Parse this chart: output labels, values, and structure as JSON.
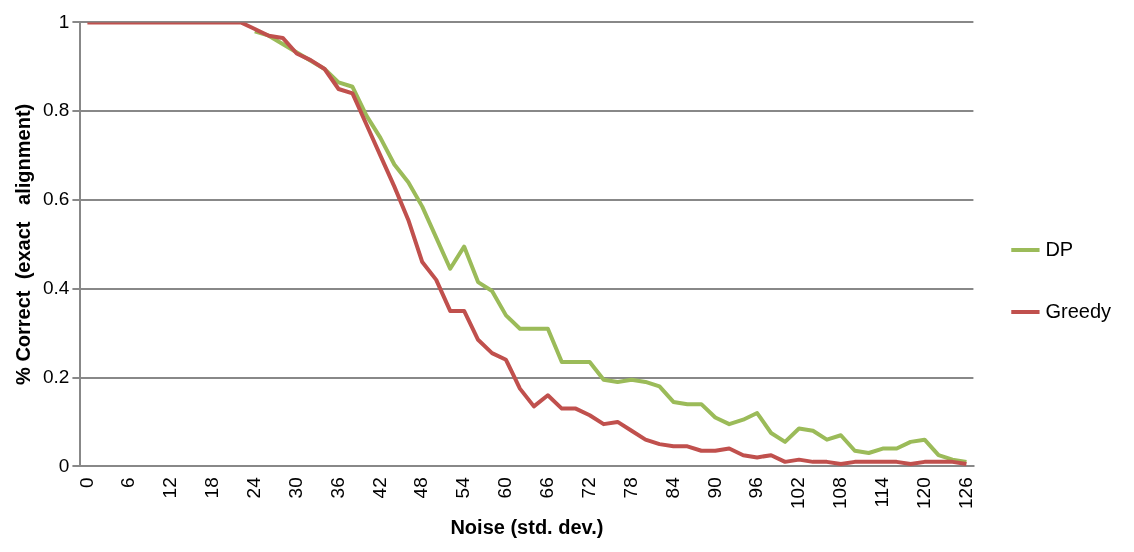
{
  "chart_data": {
    "type": "line",
    "xlabel": "Noise (std. dev.)",
    "ylabel": "% Correct  (exact   alignment)",
    "categories": [
      "0",
      null,
      null,
      "6",
      null,
      null,
      "12",
      null,
      null,
      "18",
      null,
      null,
      "24",
      null,
      null,
      "30",
      null,
      null,
      "36",
      null,
      null,
      "42",
      null,
      null,
      "48",
      null,
      null,
      "54",
      null,
      null,
      "60",
      null,
      null,
      "66",
      null,
      null,
      "72",
      null,
      null,
      "78",
      null,
      null,
      "84",
      null,
      null,
      "90",
      null,
      null,
      "96",
      null,
      null,
      "102",
      null,
      null,
      "108",
      null,
      null,
      "114",
      null,
      null,
      "120",
      null,
      null,
      "126"
    ],
    "series": [
      {
        "name": "DP",
        "color": "#9bbb59",
        "values": [
          null,
          null,
          null,
          null,
          null,
          null,
          null,
          null,
          null,
          null,
          null,
          null,
          0.98,
          0.97,
          null,
          null,
          null,
          0.895,
          0.865,
          0.855,
          0.79,
          0.74,
          0.68,
          0.64,
          0.585,
          0.515,
          0.445,
          0.495,
          0.415,
          0.395,
          0.34,
          0.31,
          0.31,
          0.31,
          0.235,
          0.235,
          0.235,
          0.195,
          0.19,
          0.195,
          0.19,
          0.18,
          0.145,
          0.14,
          0.14,
          0.11,
          0.095,
          0.105,
          0.12,
          0.075,
          0.055,
          0.085,
          0.08,
          0.06,
          0.07,
          0.035,
          0.03,
          0.04,
          0.04,
          0.055,
          0.06,
          0.025,
          0.015,
          0.01
        ]
      },
      {
        "name": "Greedy",
        "color": "#c0504d",
        "values": [
          1,
          1,
          1,
          1,
          1,
          1,
          1,
          1,
          1,
          1,
          1,
          1,
          0.985,
          0.97,
          0.965,
          0.93,
          0.915,
          0.895,
          0.85,
          0.84,
          0.77,
          0.7,
          0.63,
          0.555,
          0.46,
          0.42,
          0.35,
          0.35,
          0.285,
          0.255,
          0.24,
          0.175,
          0.135,
          0.16,
          0.13,
          0.13,
          0.115,
          0.095,
          0.1,
          0.08,
          0.06,
          0.05,
          0.045,
          0.045,
          0.035,
          0.035,
          0.04,
          0.025,
          0.02,
          0.025,
          0.01,
          0.015,
          0.01,
          0.01,
          0.005,
          0.01,
          0.01,
          0.01,
          0.01,
          0.005,
          0.01,
          0.01,
          0.01,
          0.005
        ]
      }
    ],
    "ylim": [
      0,
      1
    ],
    "yticks": [
      0,
      0.2,
      0.4,
      0.6,
      0.8,
      1
    ],
    "grid": "y",
    "legend": "right",
    "marker": "none",
    "line_style": "solid"
  }
}
